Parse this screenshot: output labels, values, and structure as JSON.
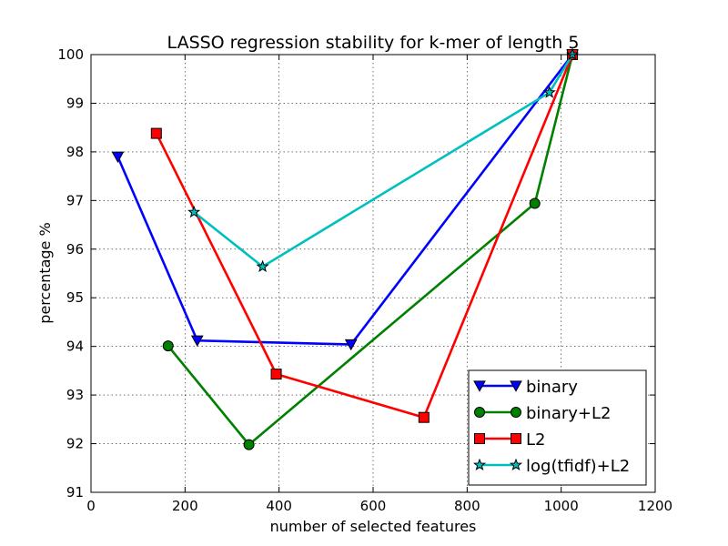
{
  "chart_data": {
    "type": "line",
    "title": "LASSO regression stability for k-mer of length 5",
    "xlabel": "number of selected features",
    "ylabel": "percentage %",
    "xlim": [
      0,
      1200
    ],
    "ylim": [
      91,
      100
    ],
    "xticks": [
      0,
      200,
      400,
      600,
      800,
      1000,
      1200
    ],
    "yticks": [
      91,
      92,
      93,
      94,
      95,
      96,
      97,
      98,
      99,
      100
    ],
    "grid": true,
    "legend_position": "bottom-right",
    "series": [
      {
        "name": "binary",
        "color": "#0000ff",
        "marker": "triangle-down",
        "points": [
          {
            "x": 57,
            "y": 97.9
          },
          {
            "x": 226,
            "y": 94.12
          },
          {
            "x": 553,
            "y": 94.04
          },
          {
            "x": 1024,
            "y": 100.0
          }
        ]
      },
      {
        "name": "binary+L2",
        "color": "#008000",
        "marker": "circle",
        "points": [
          {
            "x": 164,
            "y": 94.01
          },
          {
            "x": 336,
            "y": 91.98
          },
          {
            "x": 944,
            "y": 96.94
          },
          {
            "x": 1024,
            "y": 100.0
          }
        ]
      },
      {
        "name": "L2",
        "color": "#ff0000",
        "marker": "square",
        "points": [
          {
            "x": 139,
            "y": 98.38
          },
          {
            "x": 394,
            "y": 93.43
          },
          {
            "x": 708,
            "y": 92.54
          },
          {
            "x": 1024,
            "y": 100.0
          }
        ]
      },
      {
        "name": "log(tfidf)+L2",
        "color": "#00bfbf",
        "marker": "star",
        "points": [
          {
            "x": 219,
            "y": 96.76
          },
          {
            "x": 365,
            "y": 95.64
          },
          {
            "x": 975,
            "y": 99.22
          },
          {
            "x": 1024,
            "y": 100.0
          }
        ]
      }
    ]
  }
}
